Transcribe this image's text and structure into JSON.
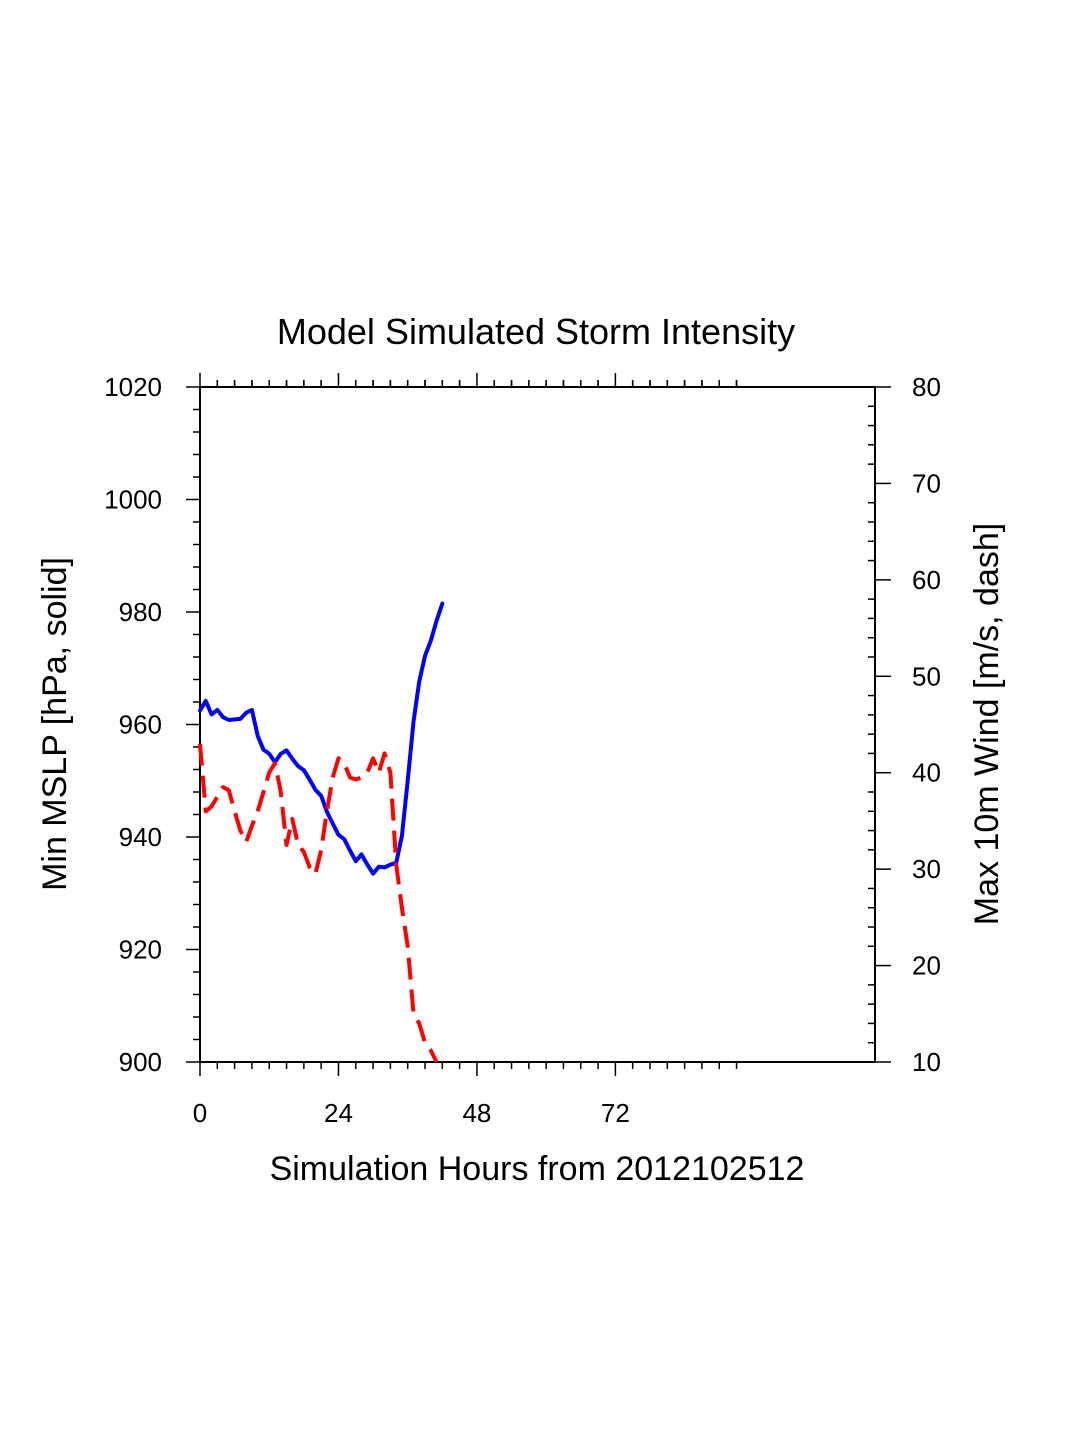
{
  "chart_data": {
    "type": "line",
    "title": "Model Simulated Storm Intensity",
    "xlabel": "Simulation Hours from 2012102512",
    "ylabel_left": "Min MSLP  [hPa, solid]",
    "ylabel_right": "Max 10m Wind  [m/s, dash]",
    "xlim": [
      0,
      117
    ],
    "ylim_left": [
      900,
      1020
    ],
    "ylim_right": [
      10,
      80
    ],
    "x_ticks": [
      0,
      24,
      48,
      72
    ],
    "x_tick_labels": [
      "0",
      "24",
      "48",
      "72"
    ],
    "y_left_ticks": [
      900,
      920,
      940,
      960,
      980,
      1000,
      1020
    ],
    "y_left_tick_labels": [
      "900",
      "920",
      "940",
      "960",
      "980",
      "1000",
      "1020"
    ],
    "y_right_ticks": [
      10,
      20,
      30,
      40,
      50,
      60,
      70,
      80
    ],
    "y_right_tick_labels": [
      "10",
      "20",
      "30",
      "40",
      "50",
      "60",
      "70",
      "80"
    ],
    "series": [
      {
        "name": "Min MSLP",
        "axis": "left",
        "style": "solid",
        "color": "#0000ff",
        "x": [
          0,
          1,
          2,
          3,
          4,
          5,
          6,
          7,
          8,
          9,
          10,
          11,
          12,
          13,
          14,
          15,
          16,
          17,
          18,
          19,
          20,
          21,
          22,
          23,
          24,
          25,
          26,
          27,
          28,
          29,
          30,
          31,
          32,
          33,
          34,
          35,
          36,
          37,
          38,
          39,
          40,
          41,
          42
        ],
        "y": [
          962.5,
          964.2,
          961.8,
          962.6,
          961.3,
          960.8,
          960.9,
          961.0,
          962.1,
          962.6,
          958.0,
          955.5,
          954.8,
          953.3,
          954.8,
          955.4,
          953.9,
          952.6,
          951.9,
          950.2,
          948.4,
          947.3,
          944.5,
          942.4,
          940.4,
          939.6,
          937.6,
          935.7,
          936.9,
          935.1,
          933.5,
          934.7,
          934.6,
          935.1,
          935.4,
          940.2,
          950.0,
          960.5,
          967.6,
          972.2,
          974.9,
          978.4,
          981.5
        ]
      },
      {
        "name": "Max 10m Wind",
        "axis": "right",
        "style": "dash",
        "color": "#ff0000",
        "x": [
          0,
          1,
          2,
          3,
          4,
          5,
          6,
          7,
          8,
          9,
          10,
          11,
          12,
          13,
          14,
          15,
          16,
          17,
          18,
          19,
          20,
          21,
          22,
          23,
          24,
          25,
          26,
          27,
          28,
          29,
          30,
          31,
          32,
          33,
          34,
          35,
          36,
          37,
          38,
          39,
          40,
          41
        ],
        "y": [
          43.0,
          36.0,
          36.5,
          37.5,
          38.5,
          38.2,
          36.0,
          34.0,
          32.8,
          34.5,
          36.0,
          38.0,
          40.0,
          41.0,
          38.0,
          32.5,
          35.2,
          32.5,
          31.8,
          30.2,
          29.5,
          32.0,
          36.0,
          39.5,
          41.5,
          41.0,
          39.5,
          39.3,
          39.5,
          40.0,
          41.5,
          40.0,
          42.0,
          40.0,
          30.5,
          26.0,
          22.0,
          15.0,
          14.0,
          12.0,
          11.2,
          10.0
        ]
      }
    ]
  }
}
